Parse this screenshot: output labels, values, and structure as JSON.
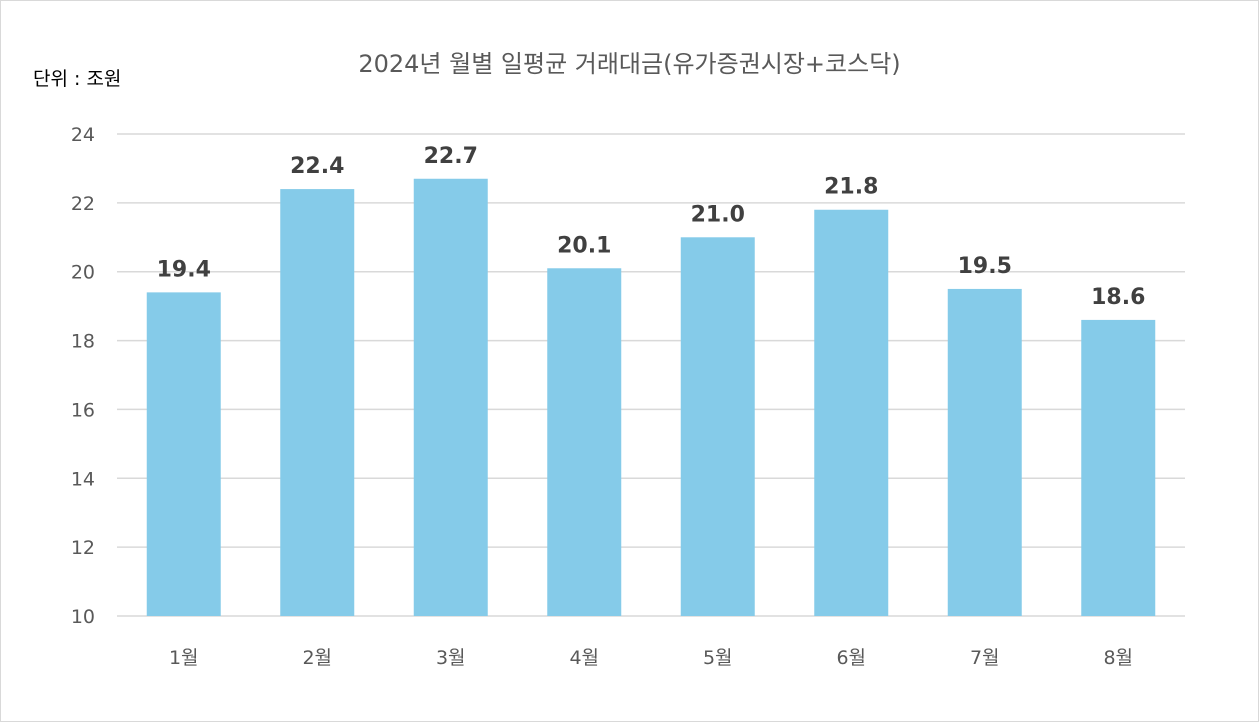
{
  "title": "2024년 월별 일평균 거래대금(유가증권시장+코스닥)",
  "unit_label": "단위 : 조원",
  "colors": {
    "bar": "#85cbe9",
    "grid": "#d9d9d9",
    "tick_text": "#595959",
    "data_label": "#404040"
  },
  "chart_data": {
    "type": "bar",
    "title": "2024년 월별 일평균 거래대금(유가증권시장+코스닥)",
    "categories": [
      "1월",
      "2월",
      "3월",
      "4월",
      "5월",
      "6월",
      "7월",
      "8월"
    ],
    "values": [
      19.4,
      22.4,
      22.7,
      20.1,
      21.0,
      21.8,
      19.5,
      18.6
    ],
    "value_labels": [
      "19.4",
      "22.4",
      "22.7",
      "20.1",
      "21.0",
      "21.8",
      "19.5",
      "18.6"
    ],
    "y_ticks": [
      10,
      12,
      14,
      16,
      18,
      20,
      22,
      24
    ],
    "ylim": [
      10,
      24
    ],
    "ylabel": "",
    "xlabel": "",
    "grid": true,
    "legend": "none"
  }
}
